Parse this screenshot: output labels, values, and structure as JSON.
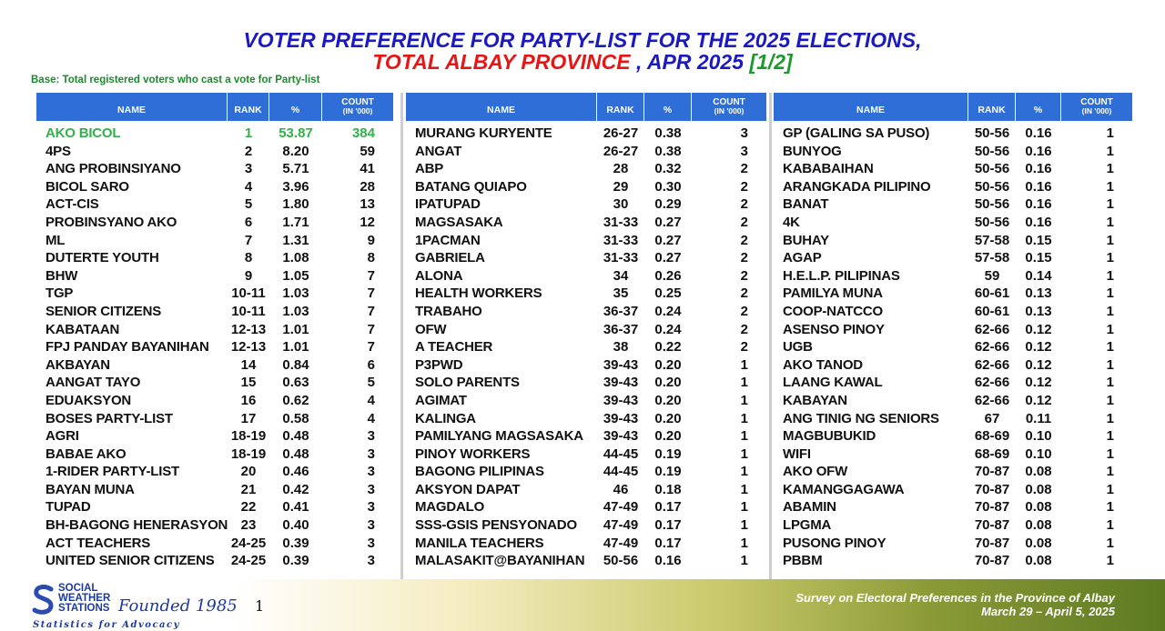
{
  "title": {
    "line1": "VOTER PREFERENCE FOR PARTY-LIST FOR THE 2025 ELECTIONS,",
    "line2_a": "TOTAL ALBAY PROVINCE",
    "line2_b": " , APR 2025 ",
    "line2_c": "[1/2]"
  },
  "base_note": "Base: Total registered voters who cast a vote for Party-list",
  "colors": {
    "header_bg": "#2f6ed6",
    "title_blue": "#1a1ac0",
    "title_red": "#e51616",
    "highlight": "#33b04a"
  },
  "headers": {
    "name": "NAME",
    "rank": "RANK",
    "pct": "%",
    "count": "COUNT",
    "count_sub": "(IN '000)"
  },
  "chart_data": {
    "type": "table",
    "title": "VOTER PREFERENCE FOR PARTY-LIST FOR THE 2025 ELECTIONS, TOTAL ALBAY PROVINCE , APR 2025 [1/2]",
    "columns": [
      "NAME",
      "RANK",
      "%",
      "COUNT (IN '000)"
    ],
    "panels": [
      [
        [
          "AKO BICOL",
          "1",
          "53.87",
          "384"
        ],
        [
          "4PS",
          "2",
          "8.20",
          "59"
        ],
        [
          "ANG PROBINSIYANO",
          "3",
          "5.71",
          "41"
        ],
        [
          "BICOL SARO",
          "4",
          "3.96",
          "28"
        ],
        [
          "ACT-CIS",
          "5",
          "1.80",
          "13"
        ],
        [
          "PROBINSYANO AKO",
          "6",
          "1.71",
          "12"
        ],
        [
          "ML",
          "7",
          "1.31",
          "9"
        ],
        [
          "DUTERTE YOUTH",
          "8",
          "1.08",
          "8"
        ],
        [
          "BHW",
          "9",
          "1.05",
          "7"
        ],
        [
          "TGP",
          "10-11",
          "1.03",
          "7"
        ],
        [
          "SENIOR CITIZENS",
          "10-11",
          "1.03",
          "7"
        ],
        [
          "KABATAAN",
          "12-13",
          "1.01",
          "7"
        ],
        [
          "FPJ PANDAY BAYANIHAN",
          "12-13",
          "1.01",
          "7"
        ],
        [
          "AKBAYAN",
          "14",
          "0.84",
          "6"
        ],
        [
          "AANGAT TAYO",
          "15",
          "0.63",
          "5"
        ],
        [
          "EDUAKSYON",
          "16",
          "0.62",
          "4"
        ],
        [
          "BOSES PARTY-LIST",
          "17",
          "0.58",
          "4"
        ],
        [
          "AGRI",
          "18-19",
          "0.48",
          "3"
        ],
        [
          "BABAE AKO",
          "18-19",
          "0.48",
          "3"
        ],
        [
          "1-RIDER PARTY-LIST",
          "20",
          "0.46",
          "3"
        ],
        [
          "BAYAN MUNA",
          "21",
          "0.42",
          "3"
        ],
        [
          "TUPAD",
          "22",
          "0.41",
          "3"
        ],
        [
          "BH-BAGONG HENERASYON",
          "23",
          "0.40",
          "3"
        ],
        [
          "ACT TEACHERS",
          "24-25",
          "0.39",
          "3"
        ],
        [
          "UNITED SENIOR CITIZENS",
          "24-25",
          "0.39",
          "3"
        ]
      ],
      [
        [
          "MURANG KURYENTE",
          "26-27",
          "0.38",
          "3"
        ],
        [
          "ANGAT",
          "26-27",
          "0.38",
          "3"
        ],
        [
          "ABP",
          "28",
          "0.32",
          "2"
        ],
        [
          "BATANG QUIAPO",
          "29",
          "0.30",
          "2"
        ],
        [
          "IPATUPAD",
          "30",
          "0.29",
          "2"
        ],
        [
          "MAGSASAKA",
          "31-33",
          "0.27",
          "2"
        ],
        [
          "1PACMAN",
          "31-33",
          "0.27",
          "2"
        ],
        [
          "GABRIELA",
          "31-33",
          "0.27",
          "2"
        ],
        [
          "ALONA",
          "34",
          "0.26",
          "2"
        ],
        [
          "HEALTH WORKERS",
          "35",
          "0.25",
          "2"
        ],
        [
          "TRABAHO",
          "36-37",
          "0.24",
          "2"
        ],
        [
          "OFW",
          "36-37",
          "0.24",
          "2"
        ],
        [
          "A TEACHER",
          "38",
          "0.22",
          "2"
        ],
        [
          "P3PWD",
          "39-43",
          "0.20",
          "1"
        ],
        [
          "SOLO PARENTS",
          "39-43",
          "0.20",
          "1"
        ],
        [
          "AGIMAT",
          "39-43",
          "0.20",
          "1"
        ],
        [
          "KALINGA",
          "39-43",
          "0.20",
          "1"
        ],
        [
          "PAMILYANG MAGSASAKA",
          "39-43",
          "0.20",
          "1"
        ],
        [
          "PINOY WORKERS",
          "44-45",
          "0.19",
          "1"
        ],
        [
          "BAGONG PILIPINAS",
          "44-45",
          "0.19",
          "1"
        ],
        [
          "AKSYON DAPAT",
          "46",
          "0.18",
          "1"
        ],
        [
          "MAGDALO",
          "47-49",
          "0.17",
          "1"
        ],
        [
          "SSS-GSIS PENSYONADO",
          "47-49",
          "0.17",
          "1"
        ],
        [
          "MANILA TEACHERS",
          "47-49",
          "0.17",
          "1"
        ],
        [
          "MALASAKIT@BAYANIHAN",
          "50-56",
          "0.16",
          "1"
        ]
      ],
      [
        [
          "GP (GALING SA PUSO)",
          "50-56",
          "0.16",
          "1"
        ],
        [
          "BUNYOG",
          "50-56",
          "0.16",
          "1"
        ],
        [
          "KABABAIHAN",
          "50-56",
          "0.16",
          "1"
        ],
        [
          "ARANGKADA PILIPINO",
          "50-56",
          "0.16",
          "1"
        ],
        [
          "BANAT",
          "50-56",
          "0.16",
          "1"
        ],
        [
          "4K",
          "50-56",
          "0.16",
          "1"
        ],
        [
          "BUHAY",
          "57-58",
          "0.15",
          "1"
        ],
        [
          "AGAP",
          "57-58",
          "0.15",
          "1"
        ],
        [
          "H.E.L.P. PILIPINAS",
          "59",
          "0.14",
          "1"
        ],
        [
          "PAMILYA MUNA",
          "60-61",
          "0.13",
          "1"
        ],
        [
          "COOP-NATCCO",
          "60-61",
          "0.13",
          "1"
        ],
        [
          "ASENSO PINOY",
          "62-66",
          "0.12",
          "1"
        ],
        [
          "UGB",
          "62-66",
          "0.12",
          "1"
        ],
        [
          "AKO TANOD",
          "62-66",
          "0.12",
          "1"
        ],
        [
          "LAANG KAWAL",
          "62-66",
          "0.12",
          "1"
        ],
        [
          "KABAYAN",
          "62-66",
          "0.12",
          "1"
        ],
        [
          "ANG TINIG NG SENIORS",
          "67",
          "0.11",
          "1"
        ],
        [
          "MAGBUBUKID",
          "68-69",
          "0.10",
          "1"
        ],
        [
          "WIFI",
          "68-69",
          "0.10",
          "1"
        ],
        [
          "AKO OFW",
          "70-87",
          "0.08",
          "1"
        ],
        [
          "KAMANGGAGAWA",
          "70-87",
          "0.08",
          "1"
        ],
        [
          "ABAMIN",
          "70-87",
          "0.08",
          "1"
        ],
        [
          "LPGMA",
          "70-87",
          "0.08",
          "1"
        ],
        [
          "PUSONG PINOY",
          "70-87",
          "0.08",
          "1"
        ],
        [
          "PBBM",
          "70-87",
          "0.08",
          "1"
        ]
      ]
    ]
  },
  "footer": {
    "logo_line1": "SOCIAL",
    "logo_line2": "WEATHER",
    "logo_line3": "STATIONS",
    "founded": "Founded 1985",
    "tagline": "Statistics for Advocacy",
    "page": "1",
    "survey": "Survey on Electoral Preferences in the Province of Albay",
    "dates": "March 29 – April 5, 2025"
  }
}
